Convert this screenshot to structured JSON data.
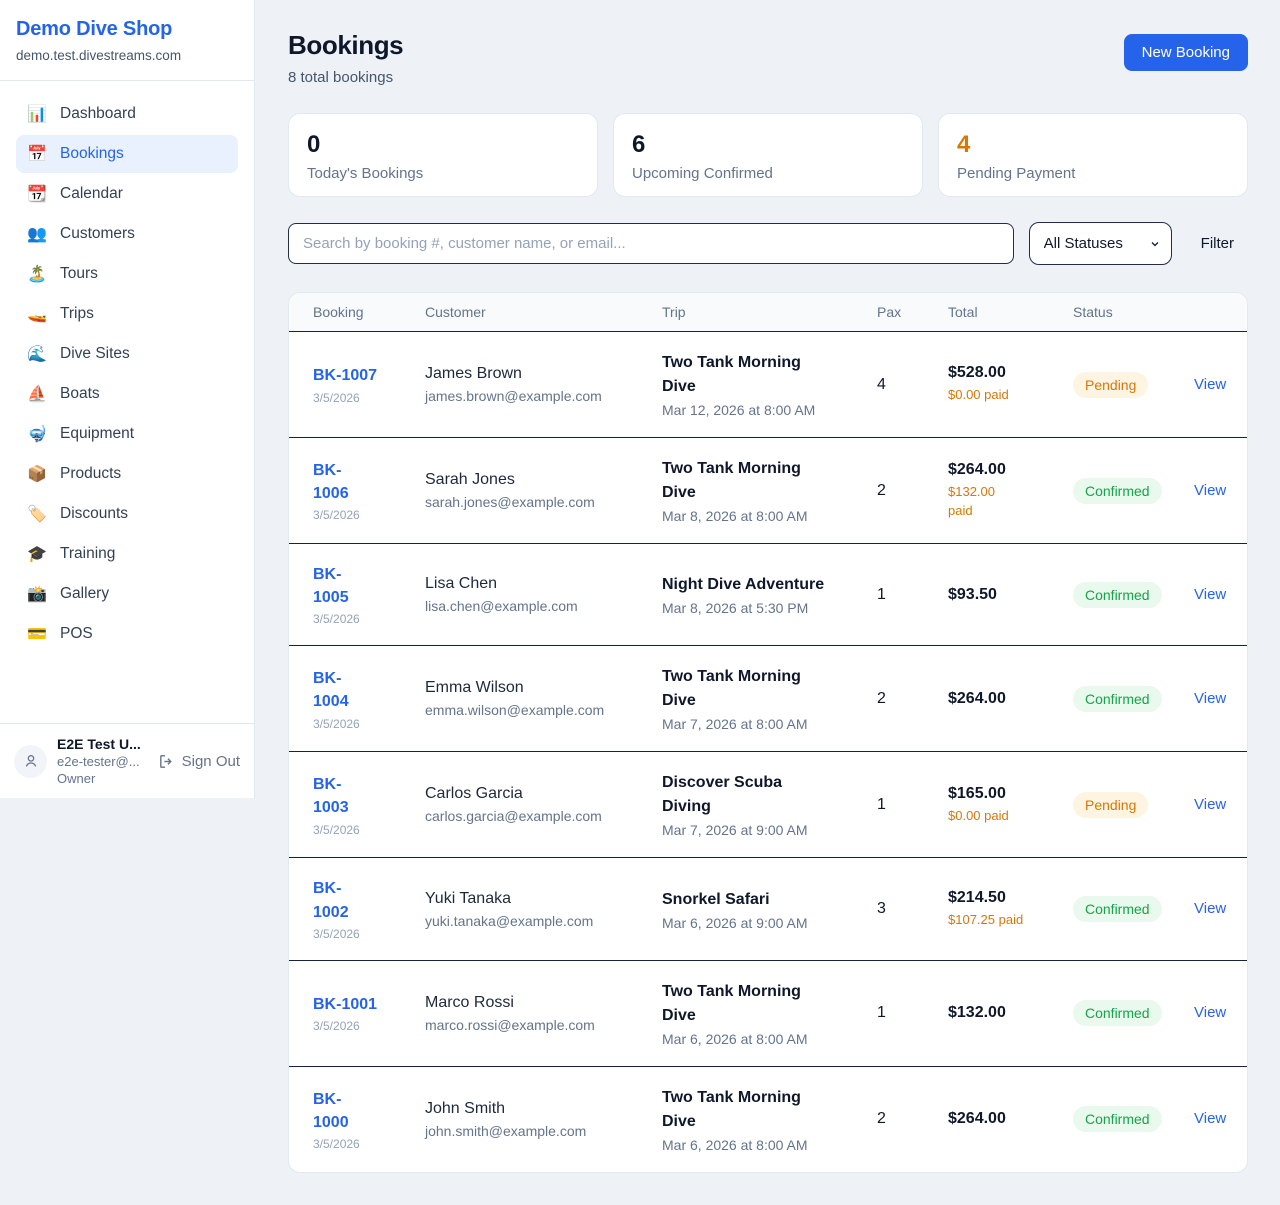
{
  "sidebar": {
    "shop_name": "Demo Dive Shop",
    "domain": "demo.test.divestreams.com",
    "nav": [
      {
        "label": "Dashboard",
        "icon": "📊",
        "active": false
      },
      {
        "label": "Bookings",
        "icon": "📅",
        "active": true
      },
      {
        "label": "Calendar",
        "icon": "📆",
        "active": false
      },
      {
        "label": "Customers",
        "icon": "👥",
        "active": false
      },
      {
        "label": "Tours",
        "icon": "🏝️",
        "active": false
      },
      {
        "label": "Trips",
        "icon": "🚤",
        "active": false
      },
      {
        "label": "Dive Sites",
        "icon": "🌊",
        "active": false
      },
      {
        "label": "Boats",
        "icon": "⛵",
        "active": false
      },
      {
        "label": "Equipment",
        "icon": "🤿",
        "active": false
      },
      {
        "label": "Products",
        "icon": "📦",
        "active": false
      },
      {
        "label": "Discounts",
        "icon": "🏷️",
        "active": false
      },
      {
        "label": "Training",
        "icon": "🎓",
        "active": false
      },
      {
        "label": "Gallery",
        "icon": "📸",
        "active": false
      },
      {
        "label": "POS",
        "icon": "💳",
        "active": false
      }
    ],
    "user": {
      "name": "E2E Test U...",
      "email": "e2e-tester@...",
      "role": "Owner",
      "sign_out_label": "Sign Out"
    }
  },
  "header": {
    "title": "Bookings",
    "subtitle": "8 total bookings",
    "new_booking_label": "New Booking"
  },
  "stats": [
    {
      "value": "0",
      "label": "Today's Bookings",
      "color": "#0f172a"
    },
    {
      "value": "6",
      "label": "Upcoming Confirmed",
      "color": "#0f172a"
    },
    {
      "value": "4",
      "label": "Pending Payment",
      "color": "#d97706"
    }
  ],
  "controls": {
    "search_placeholder": "Search by booking #, customer name, or email...",
    "status_filter_value": "All Statuses",
    "filter_label": "Filter"
  },
  "table": {
    "columns": [
      "Booking",
      "Customer",
      "Trip",
      "Pax",
      "Total",
      "Status"
    ],
    "rows": [
      {
        "booking_id": "BK-1007",
        "booking_display": "BK-1007",
        "date": "3/5/2026",
        "customer": "James Brown",
        "email": "james.brown@example.com",
        "trip": "Two Tank Morning Dive",
        "trip_display": "Two Tank Morning\nDive",
        "trip_time": "Mar 12, 2026 at 8:00 AM",
        "pax": "4",
        "total": "$528.00",
        "paid": "$0.00 paid",
        "status": "Pending",
        "action": "View"
      },
      {
        "booking_id": "BK-1006",
        "booking_display": "BK-\n1006",
        "date": "3/5/2026",
        "customer": "Sarah Jones",
        "email": "sarah.jones@example.com",
        "trip": "Two Tank Morning Dive",
        "trip_display": "Two Tank Morning\nDive",
        "trip_time": "Mar 8, 2026 at 8:00 AM",
        "pax": "2",
        "total": "$264.00",
        "paid": "$132.00\npaid",
        "status": "Confirmed",
        "action": "View"
      },
      {
        "booking_id": "BK-1005",
        "booking_display": "BK-\n1005",
        "date": "3/5/2026",
        "customer": "Lisa Chen",
        "email": "lisa.chen@example.com",
        "trip": "Night Dive Adventure",
        "trip_display": "Night Dive Adventure",
        "trip_time": "Mar 8, 2026 at 5:30 PM",
        "pax": "1",
        "total": "$93.50",
        "paid": null,
        "status": "Confirmed",
        "action": "View"
      },
      {
        "booking_id": "BK-1004",
        "booking_display": "BK-\n1004",
        "date": "3/5/2026",
        "customer": "Emma Wilson",
        "email": "emma.wilson@example.com",
        "trip": "Two Tank Morning Dive",
        "trip_display": "Two Tank Morning\nDive",
        "trip_time": "Mar 7, 2026 at 8:00 AM",
        "pax": "2",
        "total": "$264.00",
        "paid": null,
        "status": "Confirmed",
        "action": "View"
      },
      {
        "booking_id": "BK-1003",
        "booking_display": "BK-\n1003",
        "date": "3/5/2026",
        "customer": "Carlos Garcia",
        "email": "carlos.garcia@example.com",
        "trip": "Discover Scuba Diving",
        "trip_display": "Discover Scuba\nDiving",
        "trip_time": "Mar 7, 2026 at 9:00 AM",
        "pax": "1",
        "total": "$165.00",
        "paid": "$0.00 paid",
        "status": "Pending",
        "action": "View"
      },
      {
        "booking_id": "BK-1002",
        "booking_display": "BK-\n1002",
        "date": "3/5/2026",
        "customer": "Yuki Tanaka",
        "email": "yuki.tanaka@example.com",
        "trip": "Snorkel Safari",
        "trip_display": "Snorkel Safari",
        "trip_time": "Mar 6, 2026 at 9:00 AM",
        "pax": "3",
        "total": "$214.50",
        "paid": "$107.25 paid",
        "status": "Confirmed",
        "action": "View"
      },
      {
        "booking_id": "BK-1001",
        "booking_display": "BK-1001",
        "date": "3/5/2026",
        "customer": "Marco Rossi",
        "email": "marco.rossi@example.com",
        "trip": "Two Tank Morning Dive",
        "trip_display": "Two Tank Morning\nDive",
        "trip_time": "Mar 6, 2026 at 8:00 AM",
        "pax": "1",
        "total": "$132.00",
        "paid": null,
        "status": "Confirmed",
        "action": "View"
      },
      {
        "booking_id": "BK-1000",
        "booking_display": "BK-\n1000",
        "date": "3/5/2026",
        "customer": "John Smith",
        "email": "john.smith@example.com",
        "trip": "Two Tank Morning Dive",
        "trip_display": "Two Tank Morning\nDive",
        "trip_time": "Mar 6, 2026 at 8:00 AM",
        "pax": "2",
        "total": "$264.00",
        "paid": null,
        "status": "Confirmed",
        "action": "View"
      }
    ]
  },
  "colors": {
    "accent_blue": "#2563eb",
    "pending_text": "#d97706",
    "pending_bg": "#fdf5e1",
    "confirmed_text": "#16a34a",
    "confirmed_bg": "#e9f9ee"
  }
}
